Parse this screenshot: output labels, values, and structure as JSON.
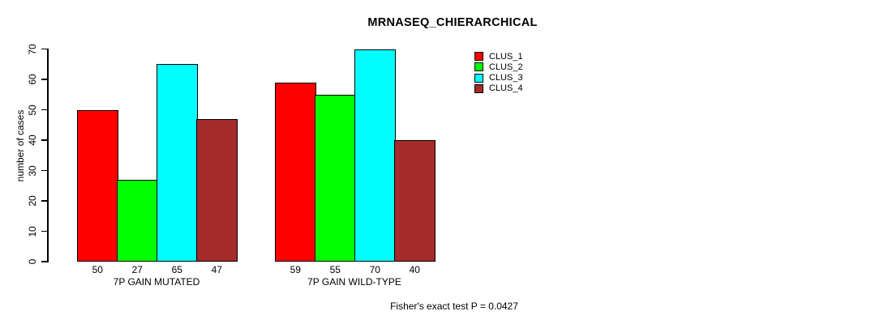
{
  "title": "MRNASEQ_CHIERARCHICAL",
  "footer": "Fisher's exact test P = 0.0427",
  "chart_data": {
    "type": "bar",
    "title": "MRNASEQ_CHIERARCHICAL",
    "xlabel": "",
    "ylabel": "number of cases",
    "ylim": [
      0,
      70
    ],
    "yticks": [
      0,
      10,
      20,
      30,
      40,
      50,
      60,
      70
    ],
    "grid": false,
    "legend_position": "top-right",
    "categories": [
      "7P GAIN MUTATED",
      "7P GAIN WILD-TYPE"
    ],
    "series": [
      {
        "name": "CLUS_1",
        "color": "#FF0000",
        "values": [
          50,
          59
        ]
      },
      {
        "name": "CLUS_2",
        "color": "#00FF00",
        "values": [
          27,
          55
        ]
      },
      {
        "name": "CLUS_3",
        "color": "#00FFFF",
        "values": [
          65,
          70
        ]
      },
      {
        "name": "CLUS_4",
        "color": "#A52A2A",
        "values": [
          47,
          40
        ]
      }
    ],
    "bar_value_labels_shown": true,
    "annotation": "Fisher's exact test P = 0.0427"
  }
}
